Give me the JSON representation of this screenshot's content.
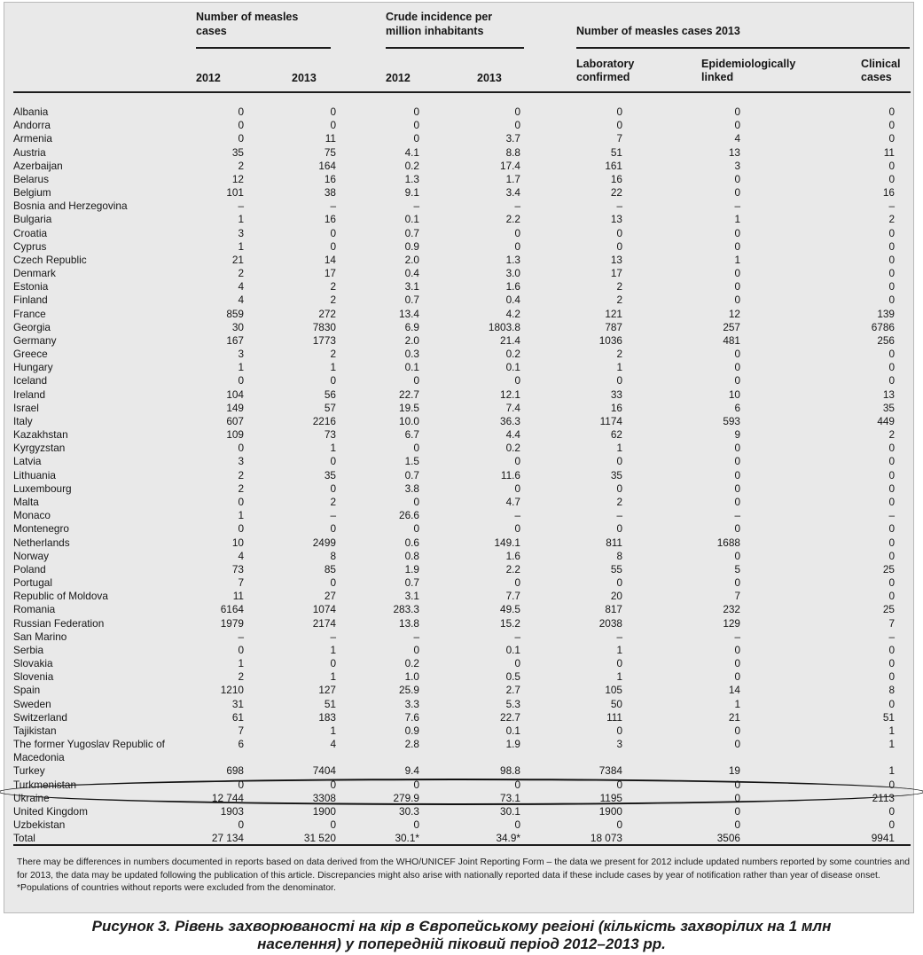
{
  "header": {
    "group1": "Number of measles cases",
    "group2": "Crude incidence per million inhabitants",
    "group3": "Number of measles cases 2013",
    "year_2012_a": "2012",
    "year_2013_a": "2013",
    "year_2012_b": "2012",
    "year_2013_b": "2013",
    "lab": "Laboratory confirmed",
    "epi": "Epidemiologically linked",
    "clinical": "Clinical cases"
  },
  "rows": [
    {
      "name": "Albania",
      "v": [
        "0",
        "0",
        "0",
        "0",
        "0",
        "0",
        "0"
      ]
    },
    {
      "name": "Andorra",
      "v": [
        "0",
        "0",
        "0",
        "0",
        "0",
        "0",
        "0"
      ]
    },
    {
      "name": "Armenia",
      "v": [
        "0",
        "11",
        "0",
        "3.7",
        "7",
        "4",
        "0"
      ]
    },
    {
      "name": "Austria",
      "v": [
        "35",
        "75",
        "4.1",
        "8.8",
        "51",
        "13",
        "11"
      ]
    },
    {
      "name": "Azerbaijan",
      "v": [
        "2",
        "164",
        "0.2",
        "17.4",
        "161",
        "3",
        "0"
      ]
    },
    {
      "name": "Belarus",
      "v": [
        "12",
        "16",
        "1.3",
        "1.7",
        "16",
        "0",
        "0"
      ]
    },
    {
      "name": "Belgium",
      "v": [
        "101",
        "38",
        "9.1",
        "3.4",
        "22",
        "0",
        "16"
      ]
    },
    {
      "name": "Bosnia and Herzegovina",
      "v": [
        "–",
        "–",
        "–",
        "–",
        "–",
        "–",
        "–"
      ]
    },
    {
      "name": "Bulgaria",
      "v": [
        "1",
        "16",
        "0.1",
        "2.2",
        "13",
        "1",
        "2"
      ]
    },
    {
      "name": "Croatia",
      "v": [
        "3",
        "0",
        "0.7",
        "0",
        "0",
        "0",
        "0"
      ]
    },
    {
      "name": "Cyprus",
      "v": [
        "1",
        "0",
        "0.9",
        "0",
        "0",
        "0",
        "0"
      ]
    },
    {
      "name": "Czech Republic",
      "v": [
        "21",
        "14",
        "2.0",
        "1.3",
        "13",
        "1",
        "0"
      ]
    },
    {
      "name": "Denmark",
      "v": [
        "2",
        "17",
        "0.4",
        "3.0",
        "17",
        "0",
        "0"
      ]
    },
    {
      "name": "Estonia",
      "v": [
        "4",
        "2",
        "3.1",
        "1.6",
        "2",
        "0",
        "0"
      ]
    },
    {
      "name": "Finland",
      "v": [
        "4",
        "2",
        "0.7",
        "0.4",
        "2",
        "0",
        "0"
      ]
    },
    {
      "name": "France",
      "v": [
        "859",
        "272",
        "13.4",
        "4.2",
        "121",
        "12",
        "139"
      ]
    },
    {
      "name": "Georgia",
      "v": [
        "30",
        "7830",
        "6.9",
        "1803.8",
        "787",
        "257",
        "6786"
      ]
    },
    {
      "name": "Germany",
      "v": [
        "167",
        "1773",
        "2.0",
        "21.4",
        "1036",
        "481",
        "256"
      ]
    },
    {
      "name": "Greece",
      "v": [
        "3",
        "2",
        "0.3",
        "0.2",
        "2",
        "0",
        "0"
      ]
    },
    {
      "name": "Hungary",
      "v": [
        "1",
        "1",
        "0.1",
        "0.1",
        "1",
        "0",
        "0"
      ]
    },
    {
      "name": "Iceland",
      "v": [
        "0",
        "0",
        "0",
        "0",
        "0",
        "0",
        "0"
      ]
    },
    {
      "name": "Ireland",
      "v": [
        "104",
        "56",
        "22.7",
        "12.1",
        "33",
        "10",
        "13"
      ]
    },
    {
      "name": "Israel",
      "v": [
        "149",
        "57",
        "19.5",
        "7.4",
        "16",
        "6",
        "35"
      ]
    },
    {
      "name": "Italy",
      "v": [
        "607",
        "2216",
        "10.0",
        "36.3",
        "1174",
        "593",
        "449"
      ]
    },
    {
      "name": "Kazakhstan",
      "v": [
        "109",
        "73",
        "6.7",
        "4.4",
        "62",
        "9",
        "2"
      ]
    },
    {
      "name": "Kyrgyzstan",
      "v": [
        "0",
        "1",
        "0",
        "0.2",
        "1",
        "0",
        "0"
      ]
    },
    {
      "name": "Latvia",
      "v": [
        "3",
        "0",
        "1.5",
        "0",
        "0",
        "0",
        "0"
      ]
    },
    {
      "name": "Lithuania",
      "v": [
        "2",
        "35",
        "0.7",
        "11.6",
        "35",
        "0",
        "0"
      ]
    },
    {
      "name": "Luxembourg",
      "v": [
        "2",
        "0",
        "3.8",
        "0",
        "0",
        "0",
        "0"
      ]
    },
    {
      "name": "Malta",
      "v": [
        "0",
        "2",
        "0",
        "4.7",
        "2",
        "0",
        "0"
      ]
    },
    {
      "name": "Monaco",
      "v": [
        "1",
        "–",
        "26.6",
        "–",
        "–",
        "–",
        "–"
      ]
    },
    {
      "name": "Montenegro",
      "v": [
        "0",
        "0",
        "0",
        "0",
        "0",
        "0",
        "0"
      ]
    },
    {
      "name": "Netherlands",
      "v": [
        "10",
        "2499",
        "0.6",
        "149.1",
        "811",
        "1688",
        "0"
      ]
    },
    {
      "name": "Norway",
      "v": [
        "4",
        "8",
        "0.8",
        "1.6",
        "8",
        "0",
        "0"
      ]
    },
    {
      "name": "Poland",
      "v": [
        "73",
        "85",
        "1.9",
        "2.2",
        "55",
        "5",
        "25"
      ]
    },
    {
      "name": "Portugal",
      "v": [
        "7",
        "0",
        "0.7",
        "0",
        "0",
        "0",
        "0"
      ]
    },
    {
      "name": "Republic of Moldova",
      "v": [
        "11",
        "27",
        "3.1",
        "7.7",
        "20",
        "7",
        "0"
      ]
    },
    {
      "name": "Romania",
      "v": [
        "6164",
        "1074",
        "283.3",
        "49.5",
        "817",
        "232",
        "25"
      ]
    },
    {
      "name": "Russian Federation",
      "v": [
        "1979",
        "2174",
        "13.8",
        "15.2",
        "2038",
        "129",
        "7"
      ]
    },
    {
      "name": "San Marino",
      "v": [
        "–",
        "–",
        "–",
        "–",
        "–",
        "–",
        "–"
      ]
    },
    {
      "name": "Serbia",
      "v": [
        "0",
        "1",
        "0",
        "0.1",
        "1",
        "0",
        "0"
      ]
    },
    {
      "name": "Slovakia",
      "v": [
        "1",
        "0",
        "0.2",
        "0",
        "0",
        "0",
        "0"
      ]
    },
    {
      "name": "Slovenia",
      "v": [
        "2",
        "1",
        "1.0",
        "0.5",
        "1",
        "0",
        "0"
      ]
    },
    {
      "name": "Spain",
      "v": [
        "1210",
        "127",
        "25.9",
        "2.7",
        "105",
        "14",
        "8"
      ]
    },
    {
      "name": "Sweden",
      "v": [
        "31",
        "51",
        "3.3",
        "5.3",
        "50",
        "1",
        "0"
      ]
    },
    {
      "name": "Switzerland",
      "v": [
        "61",
        "183",
        "7.6",
        "22.7",
        "111",
        "21",
        "51"
      ]
    },
    {
      "name": "Tajikistan",
      "v": [
        "7",
        "1",
        "0.9",
        "0.1",
        "0",
        "0",
        "1"
      ]
    },
    {
      "name": "The former Yugoslav Republic of Macedonia",
      "v": [
        "6",
        "4",
        "2.8",
        "1.9",
        "3",
        "0",
        "1"
      ],
      "tall": true
    },
    {
      "name": "Turkey",
      "v": [
        "698",
        "7404",
        "9.4",
        "98.8",
        "7384",
        "19",
        "1"
      ]
    },
    {
      "name": "Turkmenistan",
      "v": [
        "0",
        "0",
        "0",
        "0",
        "0",
        "0",
        "0"
      ]
    },
    {
      "name": "Ukraine",
      "v": [
        "12 744",
        "3308",
        "279.9",
        "73.1",
        "1195",
        "0",
        "2113"
      ]
    },
    {
      "name": "United Kingdom",
      "v": [
        "1903",
        "1900",
        "30.3",
        "30.1",
        "1900",
        "0",
        "0"
      ]
    },
    {
      "name": "Uzbekistan",
      "v": [
        "0",
        "0",
        "0",
        "0",
        "0",
        "0",
        "0"
      ]
    },
    {
      "name": "Total",
      "v": [
        "27 134",
        "31 520",
        "30.1*",
        "34.9*",
        "18 073",
        "3506",
        "9941"
      ]
    }
  ],
  "notes": {
    "line1": "There may be differences in numbers documented in reports based on data derived from the WHO/UNICEF Joint Reporting Form – the data we present for 2012 include updated numbers reported by some countries and for 2013, the data may be updated following the publication of this article. Discrepancies might also arise with nationally reported data if these include cases by year of notification rather than year of disease onset.",
    "line2": "*Populations of countries without reports were excluded from the denominator."
  },
  "caption": {
    "line1": "Рисунок 3. Рівень захворюваності на кір в Європейському регіоні (кількість захворілих на 1 млн",
    "line2": "населення) у попередній піковий період 2012–2013 рр."
  }
}
